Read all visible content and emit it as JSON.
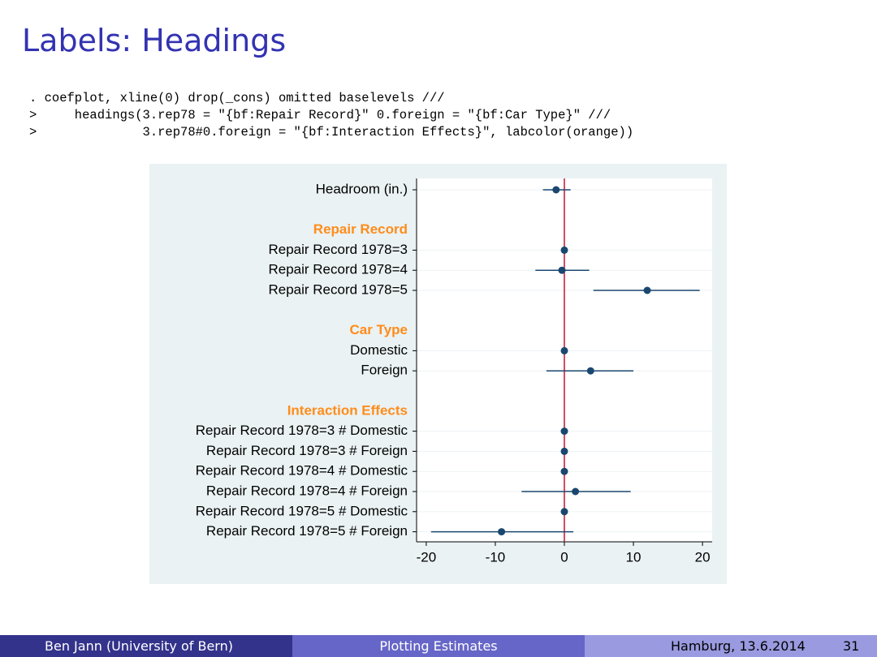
{
  "slide": {
    "title": "Labels: Headings",
    "code": [
      ". coefplot, xline(0) drop(_cons) omitted baselevels ///",
      ">     headings(3.rep78 = \"{bf:Repair Record}\" 0.foreign = \"{bf:Car Type}\" ///",
      ">              3.rep78#0.foreign = \"{bf:Interaction Effects}\", labcolor(orange))"
    ],
    "footer": {
      "author": "Ben Jann  (University of Bern)",
      "talk": "Plotting Estimates",
      "place": "Hamburg, 13.6.2014",
      "page": "31"
    }
  },
  "chart_data": {
    "type": "coefplot",
    "categories": [
      "Headroom (in.)",
      "Repair Record",
      "Repair Record 1978=3",
      "Repair Record 1978=4",
      "Repair Record 1978=5",
      "Car Type",
      "Domestic",
      "Foreign",
      "Interaction Effects",
      "Repair Record 1978=3 # Domestic",
      "Repair Record 1978=3 # Foreign",
      "Repair Record 1978=4 # Domestic",
      "Repair Record 1978=4 # Foreign",
      "Repair Record 1978=5 # Domestic",
      "Repair Record 1978=5 # Foreign"
    ],
    "series": [
      {
        "color": "#1a476f",
        "values": [
          -1.2,
          null,
          0,
          -0.35,
          12.0,
          null,
          0,
          3.8,
          null,
          0,
          0,
          0,
          1.6,
          0,
          -9.1
        ],
        "ci_low": [
          -3.1,
          null,
          null,
          -4.2,
          4.2,
          null,
          null,
          -2.6,
          null,
          null,
          null,
          null,
          -6.2,
          null,
          -19.3
        ],
        "ci_high": [
          0.9,
          null,
          null,
          3.6,
          19.6,
          null,
          null,
          10.0,
          null,
          null,
          null,
          null,
          9.6,
          null,
          1.3
        ]
      }
    ],
    "heading_color": "#ff8c1a",
    "xlim": [
      -21.4,
      21.4
    ],
    "xticks": [
      -20,
      -10,
      0,
      10,
      20
    ],
    "xline": 0,
    "xline_color": "#c8102e",
    "grid": true
  }
}
